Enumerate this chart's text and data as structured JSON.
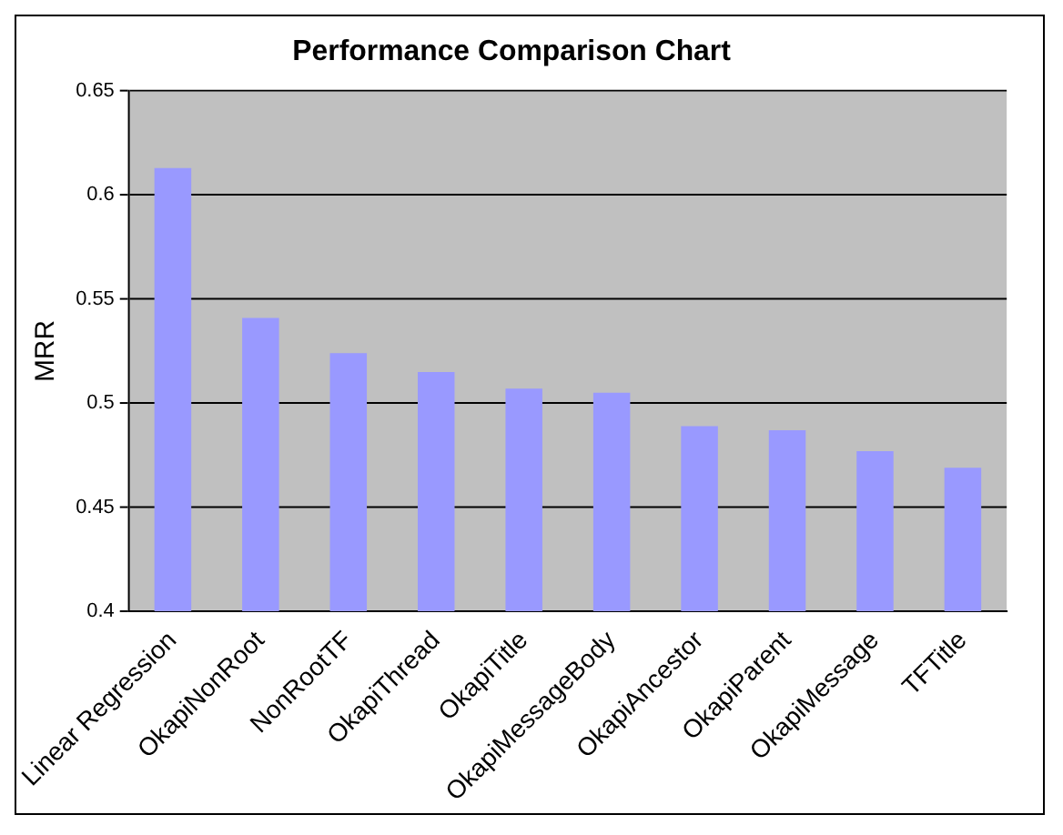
{
  "chart_data": {
    "type": "bar",
    "title": "Performance Comparison Chart",
    "ylabel": "MRR",
    "categories": [
      "Linear Regression",
      "OkapiNonRoot",
      "NonRootTF",
      "OkapiThread",
      "OkapiTitle",
      "OkapiMessageBody",
      "OkapiAncestor",
      "OkapiParent",
      "OkapiMessage",
      "TFTitle"
    ],
    "values": [
      0.613,
      0.541,
      0.524,
      0.515,
      0.507,
      0.505,
      0.489,
      0.487,
      0.477,
      0.469
    ],
    "color": "#9999ff",
    "ylim": [
      0.4,
      0.65
    ],
    "yticks": [
      0.4,
      0.45,
      0.5,
      0.55,
      0.6,
      0.65
    ],
    "grid": "y",
    "legend": false
  }
}
